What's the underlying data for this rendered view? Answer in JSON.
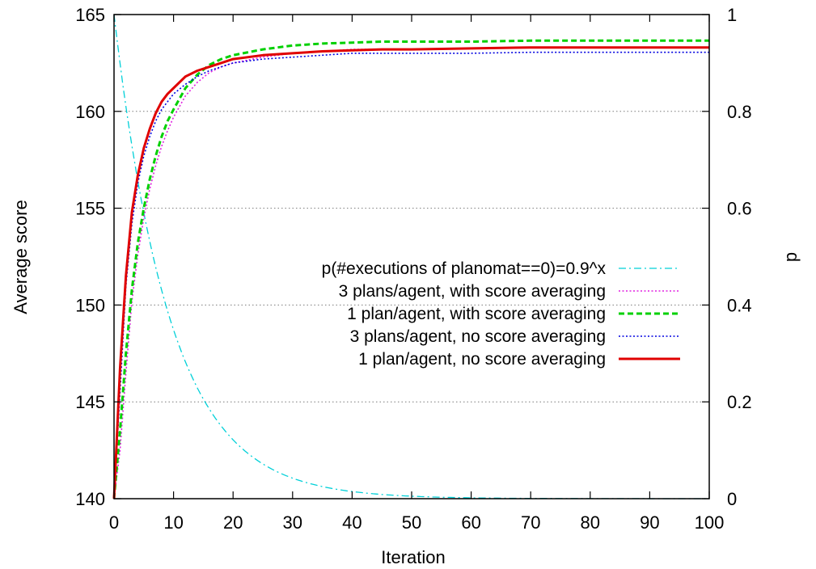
{
  "chart_data": {
    "type": "line",
    "title": "",
    "xlabel": "Iteration",
    "ylabel": "Average score",
    "y2label": "p",
    "xlim": [
      0,
      100
    ],
    "ylim": [
      140,
      165
    ],
    "y2lim": [
      0,
      1
    ],
    "xticks": [
      0,
      10,
      20,
      30,
      40,
      50,
      60,
      70,
      80,
      90,
      100
    ],
    "yticks": [
      140,
      145,
      150,
      155,
      160,
      165
    ],
    "y2ticks": [
      "0",
      "0.2",
      "0.4",
      "0.6",
      "0.8",
      "1"
    ],
    "grid": "horizontal dotted at y2 ticks",
    "legend_position": "center-right",
    "series": [
      {
        "name": "p(#executions of planomat==0)=0.9^x",
        "axis": "y2",
        "color": "#00d0d8",
        "style": "dashdot",
        "formula": "0.9^x",
        "x": [
          0,
          1,
          2,
          3,
          4,
          5,
          6,
          7,
          8,
          9,
          10,
          12,
          14,
          16,
          18,
          20,
          25,
          30,
          35,
          40,
          45,
          50,
          60,
          70,
          80,
          90,
          100
        ],
        "values": [
          1,
          0.9,
          0.81,
          0.729,
          0.656,
          0.59,
          0.531,
          0.478,
          0.43,
          0.387,
          0.349,
          0.282,
          0.229,
          0.185,
          0.15,
          0.122,
          0.072,
          0.042,
          0.025,
          0.015,
          0.009,
          0.005,
          0.002,
          0.001,
          0.0,
          0.0,
          0.0
        ]
      },
      {
        "name": "3 plans/agent, with score averaging",
        "axis": "y",
        "color": "#e020e0",
        "style": "dotted",
        "x": [
          0,
          1,
          2,
          3,
          4,
          5,
          6,
          7,
          8,
          9,
          10,
          12,
          14,
          16,
          18,
          20,
          25,
          30,
          35,
          40,
          45,
          50,
          60,
          70,
          80,
          90,
          100
        ],
        "values": [
          140,
          142.5,
          146.5,
          150.2,
          152.6,
          154.5,
          156.0,
          157.2,
          158.2,
          159.0,
          159.7,
          160.8,
          161.5,
          162.0,
          162.3,
          162.5,
          162.8,
          163.0,
          163.1,
          163.2,
          163.2,
          163.2,
          163.25,
          163.3,
          163.3,
          163.3,
          163.3
        ]
      },
      {
        "name": "1 plan/agent, with score averaging",
        "axis": "y",
        "color": "#00d000",
        "style": "dashed",
        "x": [
          0,
          1,
          2,
          3,
          4,
          5,
          6,
          7,
          8,
          9,
          10,
          12,
          14,
          16,
          18,
          20,
          25,
          30,
          35,
          40,
          45,
          50,
          60,
          70,
          80,
          90,
          100
        ],
        "values": [
          140,
          143.5,
          147.5,
          150.8,
          153.2,
          155.0,
          156.5,
          157.7,
          158.7,
          159.5,
          160.1,
          161.2,
          161.9,
          162.4,
          162.7,
          162.9,
          163.2,
          163.4,
          163.5,
          163.55,
          163.6,
          163.6,
          163.6,
          163.65,
          163.65,
          163.65,
          163.65
        ]
      },
      {
        "name": "3 plans/agent, no score averaging",
        "axis": "y",
        "color": "#0000e0",
        "style": "dotted",
        "x": [
          0,
          1,
          2,
          3,
          4,
          5,
          6,
          7,
          8,
          9,
          10,
          12,
          14,
          16,
          18,
          20,
          25,
          30,
          35,
          40,
          45,
          50,
          60,
          70,
          80,
          90,
          100
        ],
        "values": [
          140,
          145.5,
          151.0,
          154.2,
          156.3,
          157.7,
          158.7,
          159.5,
          160.1,
          160.5,
          160.9,
          161.4,
          161.8,
          162.1,
          162.3,
          162.5,
          162.7,
          162.8,
          162.9,
          163.0,
          163.0,
          163.0,
          163.0,
          163.05,
          163.05,
          163.05,
          163.05
        ]
      },
      {
        "name": "1 plan/agent, no score averaging",
        "axis": "y",
        "color": "#e00000",
        "style": "solid",
        "x": [
          0,
          1,
          2,
          3,
          4,
          5,
          6,
          7,
          8,
          9,
          10,
          12,
          14,
          16,
          18,
          20,
          25,
          30,
          35,
          40,
          45,
          50,
          60,
          70,
          80,
          90,
          100
        ],
        "values": [
          140,
          146.7,
          151.5,
          154.8,
          156.7,
          158.1,
          159.1,
          159.9,
          160.5,
          160.9,
          161.2,
          161.8,
          162.1,
          162.3,
          162.5,
          162.7,
          162.9,
          163.0,
          163.1,
          163.15,
          163.2,
          163.2,
          163.25,
          163.3,
          163.3,
          163.3,
          163.3
        ]
      }
    ]
  }
}
